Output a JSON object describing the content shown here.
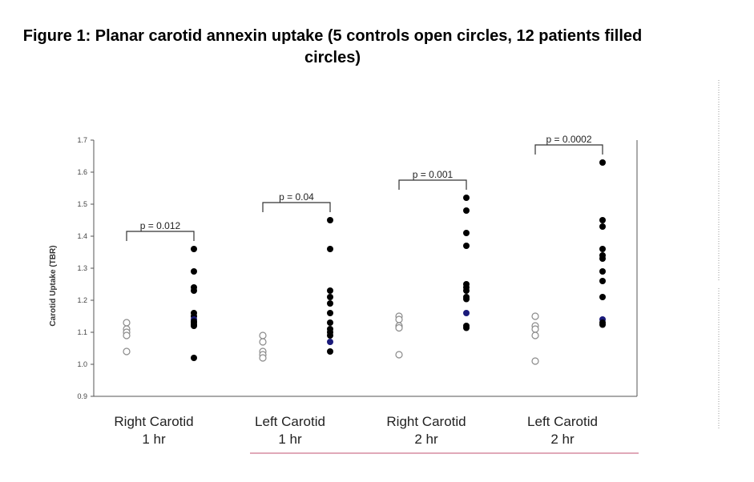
{
  "figure_title": "Figure 1: Planar carotid annexin uptake  (5 controls open circles, 12 patients filled circles)",
  "colors": {
    "filled": "#000000",
    "highlight": "#1a1a7a",
    "open_stroke": "#8a8a8a",
    "underline": "#e0a8b8"
  },
  "chart_data": {
    "type": "scatter",
    "ylabel": "Carotid Uptake (TBR)",
    "ylim": [
      0.9,
      1.7
    ],
    "yticks": [
      "0.9",
      "1.0",
      "1.1",
      "1.2",
      "1.3",
      "1.4",
      "1.5",
      "1.6",
      "1.7"
    ],
    "ytick_values": [
      0.9,
      1.0,
      1.1,
      1.2,
      1.3,
      1.4,
      1.5,
      1.6,
      1.7
    ],
    "groups": [
      {
        "label_line1": "Right Carotid",
        "label_line2": "1 hr",
        "p_value": "p = 0.012",
        "controls": [
          1.13,
          1.11,
          1.1,
          1.09,
          1.04
        ],
        "patients": [
          1.36,
          1.29,
          1.24,
          1.23,
          1.16,
          1.15,
          1.14,
          1.14,
          1.13,
          1.13,
          1.12,
          1.02
        ],
        "highlight_patient": 1.14
      },
      {
        "label_line1": "Left Carotid",
        "label_line2": "1 hr",
        "p_value": "p = 0.04",
        "controls": [
          1.09,
          1.07,
          1.04,
          1.03,
          1.02
        ],
        "patients": [
          1.45,
          1.36,
          1.23,
          1.21,
          1.19,
          1.16,
          1.13,
          1.11,
          1.1,
          1.09,
          1.07,
          1.04
        ],
        "highlight_patient": 1.07
      },
      {
        "label_line1": "Right Carotid",
        "label_line2": "2 hr",
        "p_value": "p = 0.001",
        "controls": [
          1.15,
          1.14,
          1.12,
          1.12,
          1.03
        ],
        "patients": [
          1.52,
          1.48,
          1.41,
          1.37,
          1.25,
          1.24,
          1.23,
          1.21,
          1.21,
          1.16,
          1.12,
          1.12
        ],
        "highlight_patient": 1.16
      },
      {
        "label_line1": "Left Carotid",
        "label_line2": "2 hr",
        "p_value": "p = 0.0002",
        "controls": [
          1.15,
          1.12,
          1.11,
          1.09,
          1.01
        ],
        "patients": [
          1.63,
          1.45,
          1.43,
          1.36,
          1.34,
          1.33,
          1.29,
          1.26,
          1.21,
          1.14,
          1.13,
          1.13
        ],
        "highlight_patient": 1.14
      }
    ],
    "legend": "none",
    "grid": false
  }
}
